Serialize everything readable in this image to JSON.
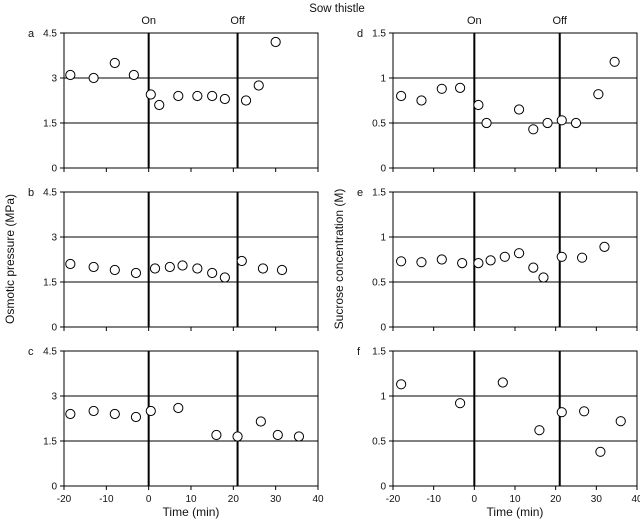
{
  "title": "Sow thistle",
  "colors": {
    "frame": "#000000",
    "point_stroke": "#000000",
    "point_fill": "#ffffff",
    "background": "#ffffff"
  },
  "chart_data": [
    {
      "id": "a",
      "type": "scatter",
      "letter": "a",
      "x": [
        -18.5,
        -13,
        -8,
        -3.5,
        0.5,
        2.5,
        7,
        11.5,
        15,
        18,
        23,
        26,
        30
      ],
      "y": [
        3.1,
        3.0,
        3.5,
        3.1,
        2.45,
        2.1,
        2.4,
        2.4,
        2.4,
        2.3,
        2.25,
        2.75,
        4.2
      ],
      "xlim": [
        -20,
        40
      ],
      "ylim": [
        0,
        4.5
      ],
      "xticks": [
        "-20",
        "-10",
        "0",
        "10",
        "20",
        "30",
        "40"
      ],
      "yticks": [
        "0",
        "1.5",
        "3",
        "4.5"
      ],
      "vlines": [
        0,
        21
      ],
      "markers": [
        "On",
        "Off"
      ],
      "xlabel": "",
      "ylabel": "",
      "grid": "horizontal at y ticks"
    },
    {
      "id": "b",
      "type": "scatter",
      "letter": "b",
      "x": [
        -18.5,
        -13,
        -8,
        -3,
        1.5,
        5,
        8,
        11.5,
        15,
        18,
        22,
        27,
        31.5
      ],
      "y": [
        2.1,
        2.0,
        1.9,
        1.8,
        1.95,
        2.0,
        2.05,
        1.95,
        1.8,
        1.65,
        2.2,
        1.95,
        1.9
      ],
      "xlim": [
        -20,
        40
      ],
      "ylim": [
        0,
        4.5
      ],
      "xticks": [
        "-20",
        "-10",
        "0",
        "10",
        "20",
        "30",
        "40"
      ],
      "yticks": [
        "0",
        "1.5",
        "3",
        "4.5"
      ],
      "vlines": [
        0,
        21
      ],
      "xlabel": "",
      "ylabel": "",
      "grid": "horizontal at y ticks"
    },
    {
      "id": "c",
      "type": "scatter",
      "letter": "c",
      "x": [
        -18.5,
        -13,
        -8,
        -3,
        0.5,
        7,
        16,
        21,
        26.5,
        30.5,
        35.5
      ],
      "y": [
        2.4,
        2.5,
        2.4,
        2.3,
        2.5,
        2.6,
        1.7,
        1.65,
        2.15,
        1.7,
        1.65
      ],
      "xlim": [
        -20,
        40
      ],
      "ylim": [
        0,
        4.5
      ],
      "xticks": [
        "-20",
        "-10",
        "0",
        "10",
        "20",
        "30",
        "40"
      ],
      "yticks": [
        "0",
        "1.5",
        "3",
        "4.5"
      ],
      "vlines": [
        0,
        21
      ],
      "xlabel": "Time (min)",
      "ylabel": "",
      "grid": "horizontal at y ticks"
    },
    {
      "id": "d",
      "type": "scatter",
      "letter": "d",
      "x": [
        -18,
        -13,
        -8,
        -3.5,
        1,
        3,
        11,
        14.5,
        18,
        21.5,
        25,
        30.5,
        34.5
      ],
      "y": [
        0.8,
        0.75,
        0.88,
        0.89,
        0.7,
        0.5,
        0.65,
        0.43,
        0.5,
        0.53,
        0.5,
        0.82,
        1.18
      ],
      "xlim": [
        -20,
        40
      ],
      "ylim": [
        0,
        1.5
      ],
      "xticks": [
        "-20",
        "-10",
        "0",
        "10",
        "20",
        "30",
        "40"
      ],
      "yticks": [
        "0",
        "0.5",
        "1",
        "1.5"
      ],
      "vlines": [
        0,
        21
      ],
      "markers": [
        "On",
        "Off"
      ],
      "xlabel": "",
      "ylabel": "",
      "grid": "horizontal at y ticks"
    },
    {
      "id": "e",
      "type": "scatter",
      "letter": "e",
      "x": [
        -18,
        -13,
        -8,
        -3,
        1,
        4,
        7.5,
        11,
        14.5,
        17,
        21.5,
        26.5,
        32
      ],
      "y": [
        0.73,
        0.72,
        0.75,
        0.71,
        0.71,
        0.74,
        0.78,
        0.82,
        0.66,
        0.55,
        0.78,
        0.77,
        0.89
      ],
      "xlim": [
        -20,
        40
      ],
      "ylim": [
        0,
        1.5
      ],
      "xticks": [
        "-20",
        "-10",
        "0",
        "10",
        "20",
        "30",
        "40"
      ],
      "yticks": [
        "0",
        "0.5",
        "1",
        "1.5"
      ],
      "vlines": [
        0,
        21
      ],
      "xlabel": "",
      "ylabel": "",
      "grid": "horizontal at y ticks"
    },
    {
      "id": "f",
      "type": "scatter",
      "letter": "f",
      "x": [
        -18,
        -3.5,
        7,
        16,
        21.5,
        27,
        31,
        36
      ],
      "y": [
        1.13,
        0.92,
        1.15,
        0.62,
        0.82,
        0.83,
        0.38,
        0.72
      ],
      "xlim": [
        -20,
        40
      ],
      "ylim": [
        0,
        1.5
      ],
      "xticks": [
        "-20",
        "-10",
        "0",
        "10",
        "20",
        "30",
        "40"
      ],
      "yticks": [
        "0",
        "0.5",
        "1",
        "1.5"
      ],
      "vlines": [
        0,
        21
      ],
      "xlabel": "Time (min)",
      "ylabel": "",
      "grid": "horizontal at y ticks"
    }
  ],
  "left_ylabel": "Osmotic pressure (MPa)",
  "right_ylabel": "Sucrose concentration (M)"
}
